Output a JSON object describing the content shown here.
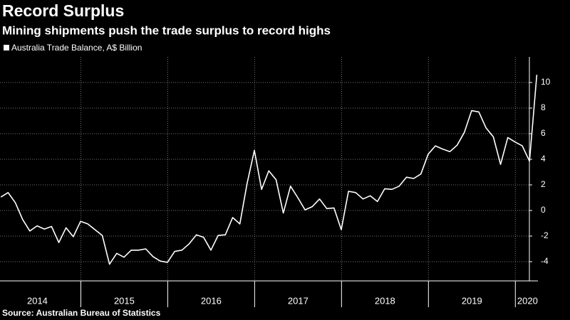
{
  "chart_data": {
    "type": "line",
    "title": "Record Surplus",
    "subtitle": "Mining shipments push the trade surplus to record highs",
    "source": "Source: Australian Bureau of Statistics",
    "x": [
      2014.08,
      2014.163,
      2014.247,
      2014.33,
      2014.413,
      2014.497,
      2014.58,
      2014.663,
      2014.747,
      2014.83,
      2014.913,
      2014.997,
      2015.08,
      2015.163,
      2015.247,
      2015.33,
      2015.413,
      2015.497,
      2015.58,
      2015.663,
      2015.747,
      2015.83,
      2015.913,
      2015.997,
      2016.08,
      2016.163,
      2016.247,
      2016.33,
      2016.413,
      2016.497,
      2016.58,
      2016.663,
      2016.747,
      2016.83,
      2016.913,
      2016.997,
      2017.08,
      2017.163,
      2017.247,
      2017.33,
      2017.413,
      2017.497,
      2017.58,
      2017.663,
      2017.747,
      2017.83,
      2017.913,
      2017.997,
      2018.08,
      2018.163,
      2018.247,
      2018.33,
      2018.413,
      2018.497,
      2018.58,
      2018.663,
      2018.747,
      2018.83,
      2018.913,
      2018.997,
      2019.08,
      2019.163,
      2019.247,
      2019.33,
      2019.413,
      2019.497,
      2019.58,
      2019.663,
      2019.747,
      2019.83,
      2019.913,
      2019.997,
      2020.08,
      2020.163,
      2020.247
    ],
    "series": [
      {
        "name": "Australia Trade Balance, A$ Billion",
        "color": "#ffffff",
        "values": [
          1.05,
          1.4,
          0.6,
          -0.7,
          -1.6,
          -1.2,
          -1.45,
          -1.25,
          -2.5,
          -1.35,
          -2.05,
          -0.85,
          -1.05,
          -1.5,
          -1.95,
          -4.2,
          -3.35,
          -3.65,
          -3.1,
          -3.1,
          -3.0,
          -3.6,
          -3.95,
          -4.05,
          -3.2,
          -3.1,
          -2.6,
          -1.9,
          -2.1,
          -3.1,
          -1.95,
          -1.9,
          -0.55,
          -1.05,
          2.1,
          4.7,
          1.65,
          3.1,
          2.4,
          -0.2,
          1.9,
          1.0,
          0.05,
          0.3,
          0.9,
          0.15,
          0.2,
          -1.5,
          1.5,
          1.4,
          0.9,
          1.15,
          0.7,
          1.7,
          1.65,
          1.9,
          2.6,
          2.5,
          2.85,
          4.4,
          5.05,
          4.8,
          4.6,
          5.1,
          6.1,
          7.8,
          7.7,
          6.45,
          5.75,
          3.6,
          5.7,
          5.35,
          5.05,
          3.85,
          10.6
        ]
      }
    ],
    "xlim": [
      2014.07,
      2020.26
    ],
    "xticks": [
      2015,
      2016,
      2017,
      2018,
      2019,
      2020
    ],
    "year_labels": [
      {
        "value": 2014.5,
        "label": "2014"
      },
      {
        "value": 2015.5,
        "label": "2015"
      },
      {
        "value": 2016.5,
        "label": "2016"
      },
      {
        "value": 2017.5,
        "label": "2017"
      },
      {
        "value": 2018.5,
        "label": "2018"
      },
      {
        "value": 2019.5,
        "label": "2019"
      },
      {
        "value": 2020.14,
        "label": "2020"
      }
    ],
    "ylim": [
      -5.5,
      12
    ],
    "yticks": [
      -4,
      -2,
      0,
      2,
      4,
      6,
      8,
      10
    ],
    "grid": true
  }
}
